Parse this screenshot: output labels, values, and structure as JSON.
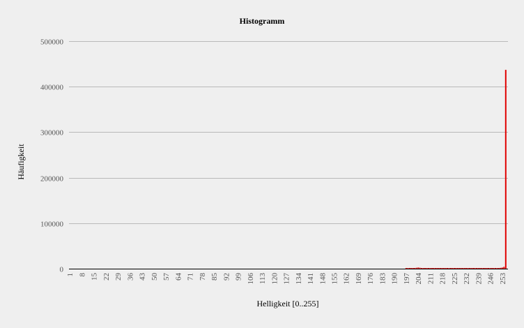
{
  "chart_data": {
    "type": "bar",
    "title": "Histogramm",
    "xlabel": "Helligkeit [0..255]",
    "ylabel": "Häufigkeit",
    "ylim": [
      0,
      500000
    ],
    "yticks": [
      "0",
      "100000",
      "200000",
      "300000",
      "400000",
      "500000"
    ],
    "xrange": [
      1,
      255
    ],
    "xticks": [
      "1",
      "8",
      "15",
      "22",
      "29",
      "36",
      "43",
      "50",
      "57",
      "64",
      "71",
      "78",
      "85",
      "92",
      "99",
      "106",
      "113",
      "120",
      "127",
      "134",
      "141",
      "148",
      "155",
      "162",
      "169",
      "176",
      "183",
      "190",
      "197",
      "204",
      "211",
      "218",
      "225",
      "232",
      "239",
      "246",
      "253"
    ],
    "grid": true,
    "bar_color": "#e00000",
    "x": [
      197,
      198,
      199,
      200,
      201,
      202,
      203,
      204,
      205,
      206,
      207,
      208,
      209,
      210,
      211,
      212,
      213,
      214,
      215,
      216,
      217,
      218,
      219,
      220,
      221,
      222,
      223,
      224,
      225,
      226,
      227,
      228,
      229,
      230,
      231,
      232,
      233,
      234,
      235,
      236,
      237,
      238,
      239,
      240,
      241,
      242,
      243,
      244,
      245,
      246,
      247,
      248,
      249,
      250,
      251,
      252,
      253,
      254,
      255
    ],
    "values": [
      300,
      500,
      700,
      900,
      1200,
      1500,
      2000,
      2400,
      2000,
      1600,
      1200,
      900,
      800,
      700,
      600,
      600,
      550,
      500,
      500,
      450,
      450,
      400,
      400,
      400,
      350,
      350,
      350,
      300,
      300,
      300,
      300,
      300,
      300,
      300,
      300,
      300,
      300,
      300,
      300,
      300,
      300,
      300,
      300,
      300,
      300,
      300,
      300,
      300,
      300,
      300,
      400,
      500,
      600,
      800,
      1200,
      1800,
      2500,
      4000,
      437000
    ]
  }
}
